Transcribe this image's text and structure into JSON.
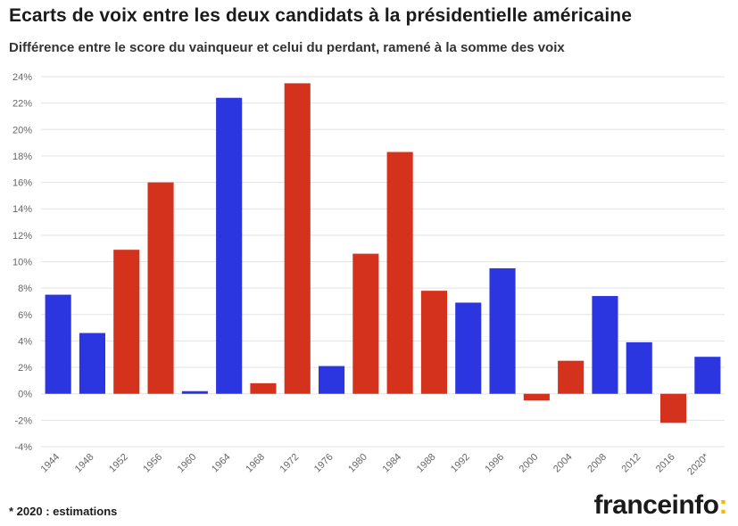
{
  "header": {
    "title": "Ecarts de voix entre les deux candidats à la présidentielle américaine",
    "subtitle": "Différence entre le score du vainqueur et celui du perdant, ramené à la somme des voix"
  },
  "footer": {
    "note": "* 2020 : estimations",
    "brand_text": "franceinfo",
    "brand_mark": ":"
  },
  "colors": {
    "democrat": "#2b35e0",
    "republican": "#d5321e",
    "grid": "#e3e3e3",
    "tick_text": "#666666"
  },
  "chart_data": {
    "type": "bar",
    "title": "Ecarts de voix entre les deux candidats à la présidentielle américaine",
    "subtitle": "Différence entre le score du vainqueur et celui du perdant, ramené à la somme des voix",
    "xlabel": "",
    "ylabel": "",
    "ylim": [
      -4,
      24
    ],
    "y_ticks": [
      -4,
      -2,
      0,
      2,
      4,
      6,
      8,
      10,
      12,
      14,
      16,
      18,
      20,
      22,
      24
    ],
    "y_tick_suffix": "%",
    "grid": true,
    "categories": [
      "1944",
      "1948",
      "1952",
      "1956",
      "1960",
      "1964",
      "1968",
      "1972",
      "1976",
      "1980",
      "1984",
      "1988",
      "1992",
      "1996",
      "2000",
      "2004",
      "2008",
      "2012",
      "2016",
      "2020*"
    ],
    "values": [
      7.5,
      4.6,
      10.9,
      16.0,
      0.2,
      22.4,
      0.8,
      23.5,
      2.1,
      10.6,
      18.3,
      7.8,
      6.9,
      9.5,
      -0.5,
      2.5,
      7.4,
      3.9,
      -2.2,
      2.8
    ],
    "bar_colors": [
      "democrat",
      "democrat",
      "republican",
      "republican",
      "democrat",
      "democrat",
      "republican",
      "republican",
      "democrat",
      "republican",
      "republican",
      "republican",
      "democrat",
      "democrat",
      "republican",
      "republican",
      "democrat",
      "democrat",
      "republican",
      "democrat"
    ]
  }
}
